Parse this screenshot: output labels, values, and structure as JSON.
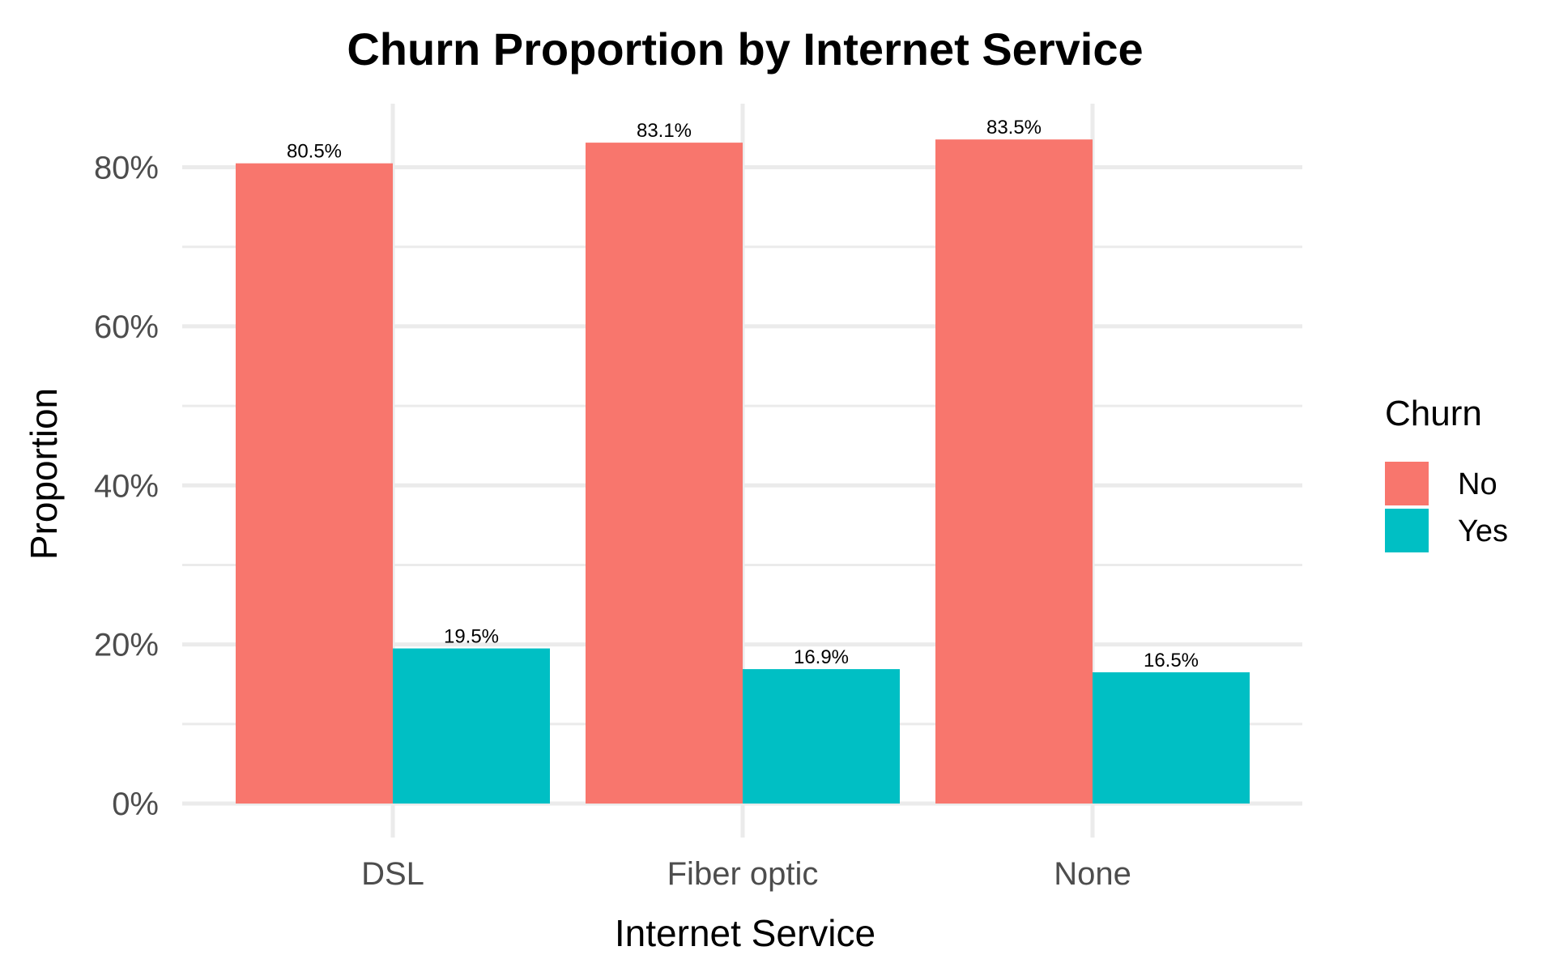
{
  "chart_data": {
    "type": "bar",
    "title": "Churn Proportion by Internet Service",
    "xlabel": "Internet Service",
    "ylabel": "Proportion",
    "categories": [
      "DSL",
      "Fiber optic",
      "None"
    ],
    "series": [
      {
        "name": "No",
        "color": "#F8766D",
        "values": [
          80.5,
          83.1,
          83.5
        ],
        "labels": [
          "80.5%",
          "83.1%",
          "83.5%"
        ]
      },
      {
        "name": "Yes",
        "color": "#00BFC4",
        "values": [
          19.5,
          16.9,
          16.5
        ],
        "labels": [
          "19.5%",
          "16.9%",
          "16.5%"
        ]
      }
    ],
    "ylim": [
      0,
      88
    ],
    "yticks": [
      0,
      20,
      40,
      60,
      80
    ],
    "ytick_labels": [
      "0%",
      "20%",
      "40%",
      "60%",
      "80%"
    ],
    "grid": true,
    "legend": {
      "title": "Churn",
      "position": "right"
    }
  }
}
